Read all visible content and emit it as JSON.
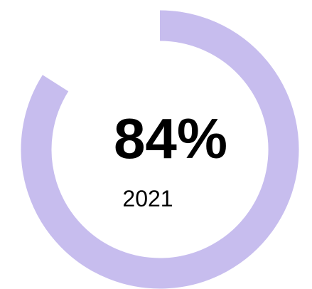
{
  "chart_data": {
    "type": "pie",
    "variant": "donut-gauge",
    "value_percent": 84,
    "value_label": "84%",
    "sublabel": "2021",
    "colors": {
      "ring": "#c7bdee",
      "text": "#000000"
    }
  }
}
